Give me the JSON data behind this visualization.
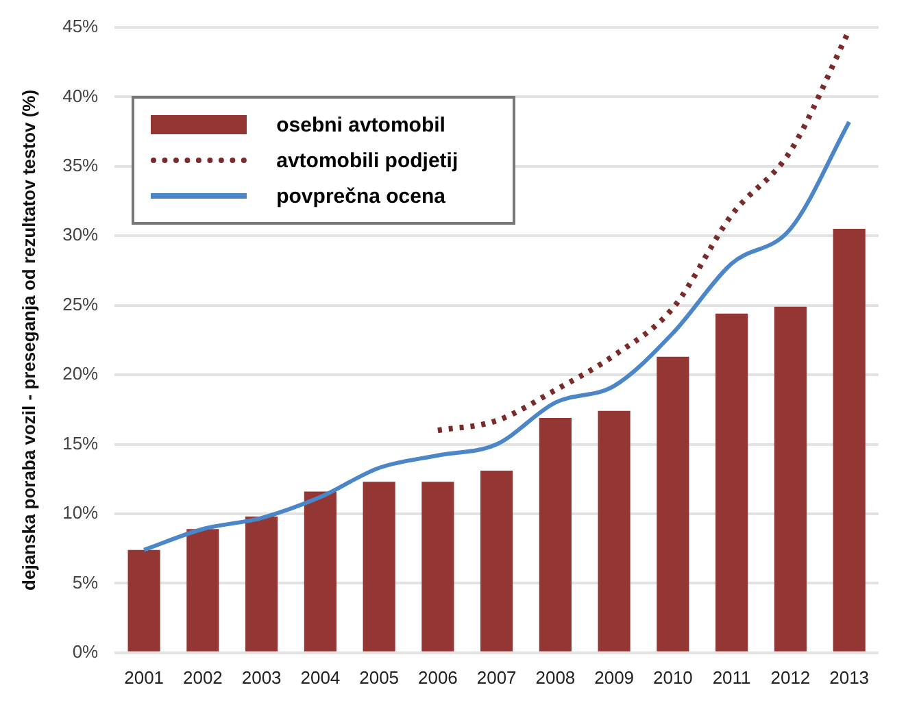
{
  "chart_data": {
    "type": "bar",
    "ylabel": "dejanska poraba vozil - preseganja od rezultatov testov (%)",
    "categories": [
      "2001",
      "2002",
      "2003",
      "2004",
      "2005",
      "2006",
      "2007",
      "2008",
      "2009",
      "2010",
      "2011",
      "2012",
      "2013"
    ],
    "series": [
      {
        "name": "osebni avtomobil",
        "color": "#943634",
        "values": [
          7.4,
          8.9,
          9.8,
          11.6,
          12.3,
          12.3,
          13.1,
          16.9,
          17.4,
          21.3,
          24.4,
          24.9,
          30.5
        ]
      },
      {
        "name": "avtomobili podjetij",
        "type": "line",
        "line_style": "dotted",
        "color": "#7b2a2a",
        "values": [
          null,
          null,
          null,
          null,
          null,
          16.0,
          16.7,
          18.9,
          21.4,
          24.8,
          31.5,
          36.1,
          44.8
        ]
      },
      {
        "name": "povprečna ocena",
        "type": "line",
        "line_style": "solid",
        "color": "#4a86c8",
        "values": [
          7.4,
          8.9,
          9.7,
          11.2,
          13.3,
          14.2,
          15.0,
          18.0,
          19.2,
          23.0,
          28.0,
          30.5,
          38.2
        ]
      }
    ],
    "ylim": [
      0,
      45
    ],
    "yticks": [
      {
        "value": 0,
        "label": "0%"
      },
      {
        "value": 5,
        "label": "5%"
      },
      {
        "value": 10,
        "label": "10%"
      },
      {
        "value": 15,
        "label": "15%"
      },
      {
        "value": 20,
        "label": "20%"
      },
      {
        "value": 25,
        "label": "25%"
      },
      {
        "value": 30,
        "label": "30%"
      },
      {
        "value": 35,
        "label": "35%"
      },
      {
        "value": 40,
        "label": "40%"
      },
      {
        "value": 45,
        "label": "45%"
      }
    ],
    "grid": "y",
    "legend": "top left",
    "marker": "none"
  }
}
